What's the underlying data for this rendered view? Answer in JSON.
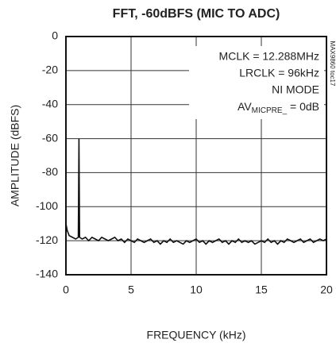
{
  "chart_data": {
    "type": "line",
    "title": "FFT, -60dBFS (MIC TO ADC)",
    "xlabel": "FREQUENCY (kHz)",
    "ylabel": "AMPLITUDE (dBFS)",
    "annotations": [
      "MCLK = 12.288MHz",
      "LRCLK = 96kHz",
      "NI MODE"
    ],
    "gain_note": {
      "base": "AV",
      "sub": "MICPRE_",
      "rest": " = 0dB"
    },
    "code": "MAX9860 toc17",
    "xlim": [
      0,
      20
    ],
    "xticks": [
      0,
      5,
      10,
      15,
      20
    ],
    "ylim": [
      -140,
      0
    ],
    "yticks": [
      0,
      -20,
      -40,
      -60,
      -80,
      -100,
      -120,
      -140
    ],
    "grid": true,
    "x": [
      0,
      0.1,
      0.25,
      0.5,
      0.75,
      0.95,
      1,
      1.05,
      1.25,
      1.5,
      1.75,
      2,
      2.25,
      2.5,
      2.75,
      3,
      3.25,
      3.5,
      3.75,
      4,
      4.25,
      4.5,
      4.75,
      5,
      5.25,
      5.5,
      5.75,
      6,
      6.25,
      6.5,
      6.75,
      7,
      7.25,
      7.5,
      7.75,
      8,
      8.25,
      8.5,
      8.75,
      9,
      9.25,
      9.5,
      9.75,
      10,
      10.25,
      10.5,
      10.75,
      11,
      11.25,
      11.5,
      11.75,
      12,
      12.25,
      12.5,
      12.75,
      13,
      13.25,
      13.5,
      13.75,
      14,
      14.25,
      14.5,
      14.75,
      15,
      15.25,
      15.5,
      15.75,
      16,
      16.25,
      16.5,
      16.75,
      17,
      17.25,
      17.5,
      17.75,
      18,
      18.25,
      18.5,
      18.75,
      19,
      19.25,
      19.5,
      19.75,
      20
    ],
    "series": [
      {
        "color": "#111111",
        "values": [
          -110,
          -114,
          -117,
          -118,
          -119,
          -118,
          -60,
          -118,
          -119,
          -118,
          -120,
          -118,
          -119,
          -120,
          -118,
          -119,
          -120,
          -119,
          -118,
          -120,
          -119,
          -121,
          -119,
          -120,
          -121,
          -119,
          -120,
          -121,
          -120,
          -119,
          -121,
          -120,
          -122,
          -120,
          -121,
          -119,
          -121,
          -120,
          -121,
          -122,
          -120,
          -121,
          -120,
          -119,
          -121,
          -120,
          -122,
          -120,
          -121,
          -120,
          -119,
          -121,
          -120,
          -122,
          -120,
          -121,
          -119,
          -121,
          -120,
          -121,
          -120,
          -122,
          -121,
          -120,
          -121,
          -119,
          -121,
          -120,
          -122,
          -120,
          -121,
          -119,
          -120,
          -121,
          -120,
          -119,
          -121,
          -120,
          -119,
          -121,
          -120,
          -119,
          -120,
          -119
        ]
      }
    ]
  }
}
